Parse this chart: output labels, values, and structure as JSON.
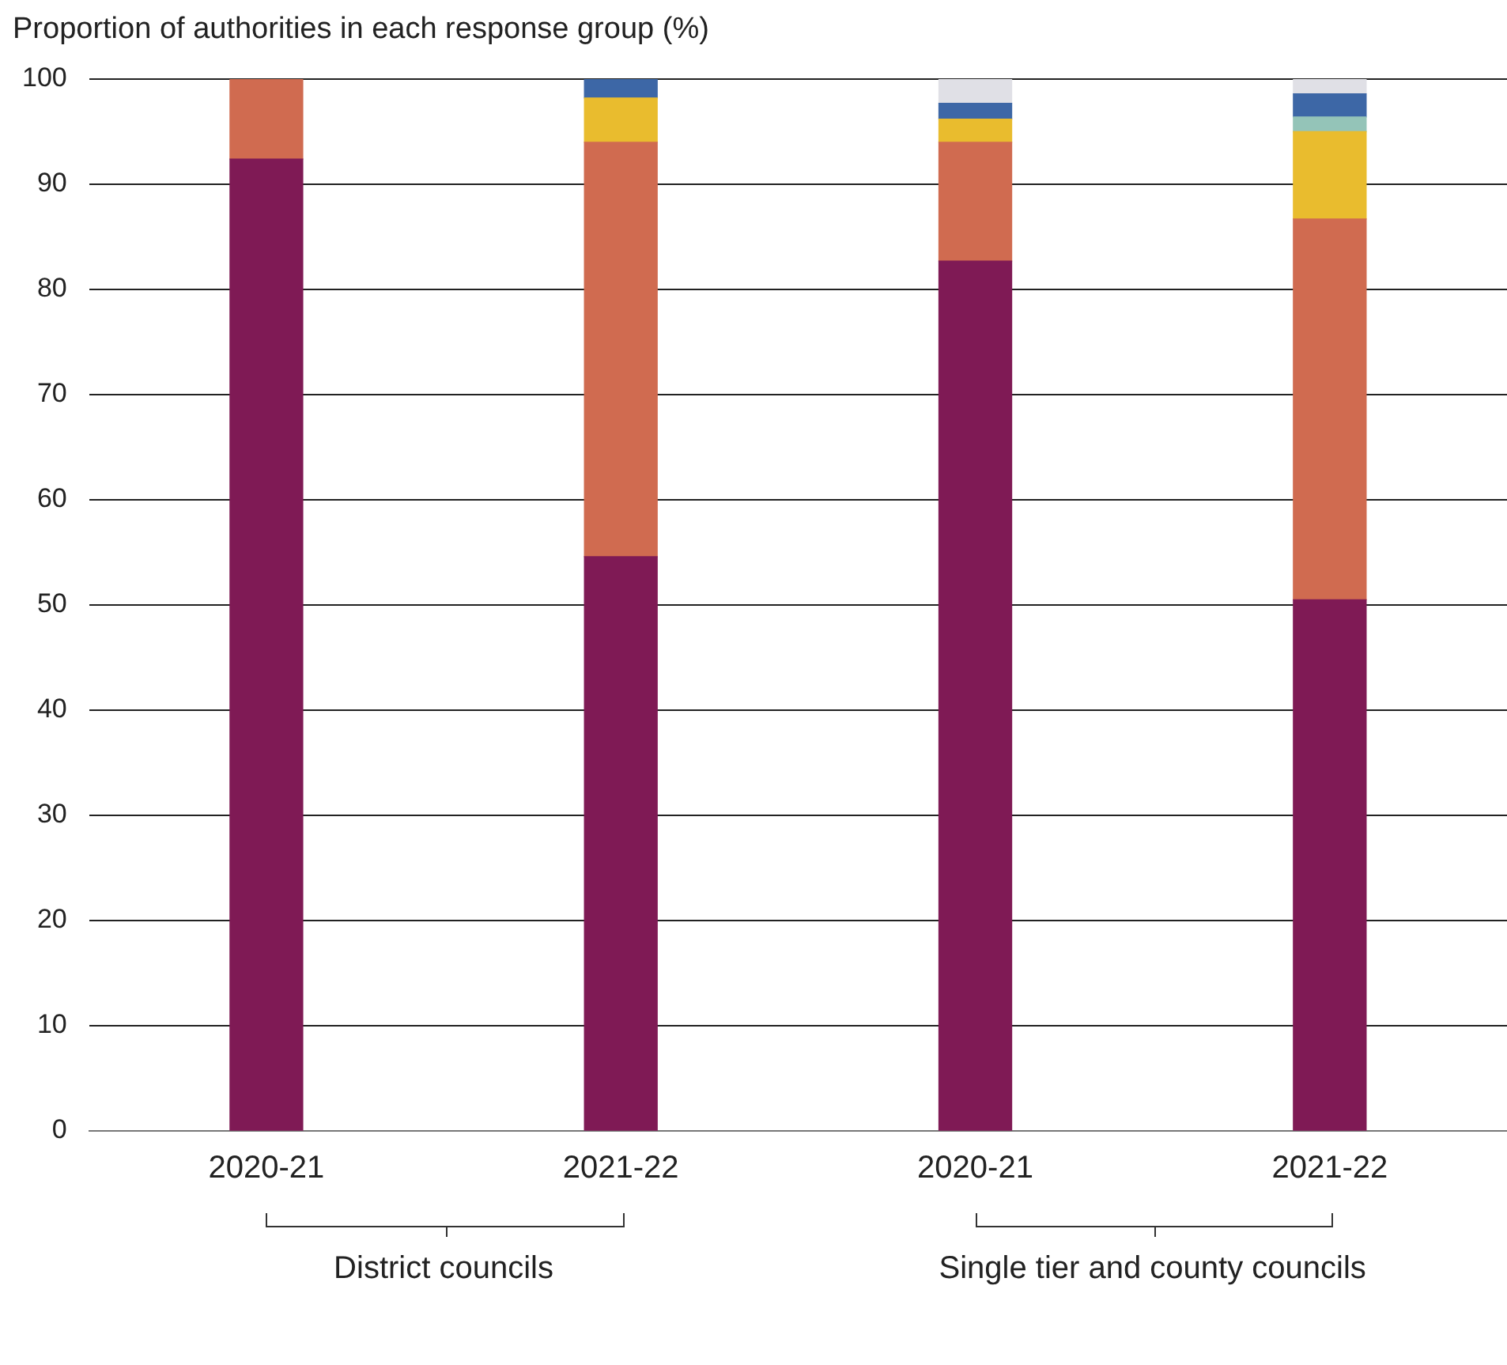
{
  "chart_data": {
    "type": "bar",
    "stacked": true,
    "ylabel": "Proportion of authorities in each response group (%)",
    "categories": [
      "2020-21",
      "2021-22",
      "2020-21",
      "2021-22"
    ],
    "series": [
      {
        "color": "#7f1a55",
        "values": [
          92.4,
          54.6,
          82.7,
          50.5
        ]
      },
      {
        "color": "#d06b50",
        "values": [
          7.6,
          39.4,
          11.3,
          36.2
        ]
      },
      {
        "color": "#e9bc2e",
        "values": [
          null,
          4.2,
          2.2,
          8.3
        ]
      },
      {
        "color": "#94c4b8",
        "values": [
          null,
          null,
          null,
          1.4
        ]
      },
      {
        "color": "#3d67a6",
        "values": [
          null,
          1.8,
          1.5,
          2.2
        ]
      },
      {
        "color": "#e0e0e6",
        "values": [
          null,
          null,
          2.3,
          1.4
        ]
      }
    ],
    "ylim": [
      0,
      100
    ],
    "yticks": [
      0,
      10,
      20,
      30,
      40,
      50,
      60,
      70,
      80,
      90,
      100
    ],
    "grid": "y",
    "legend": false,
    "annotations": [
      "District councils",
      "Single tier and county councils"
    ]
  }
}
